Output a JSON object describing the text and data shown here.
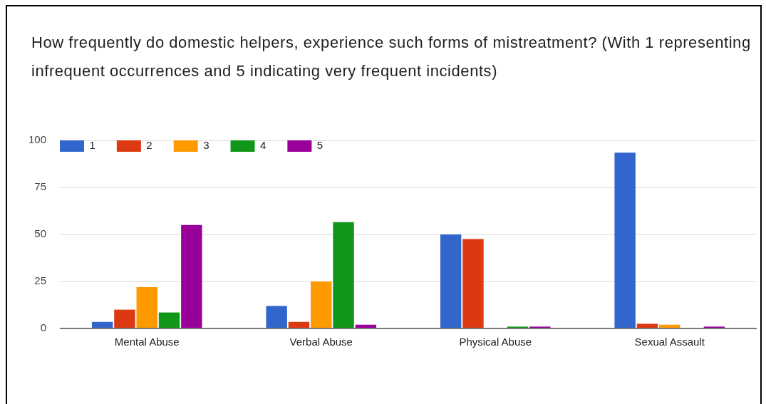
{
  "chart_data": {
    "type": "bar",
    "title": "How frequently do domestic helpers, experience such forms of mistreatment? (With 1 representing infrequent occurrences and 5 indicating very frequent incidents)",
    "categories": [
      "Mental Abuse",
      "Verbal Abuse",
      "Physical Abuse",
      "Sexual Assault"
    ],
    "series": [
      {
        "name": "1",
        "color": "#3366cc",
        "values": [
          3.5,
          12,
          50,
          93.5
        ]
      },
      {
        "name": "2",
        "color": "#dc3912",
        "values": [
          10,
          3.5,
          47.5,
          2.5
        ]
      },
      {
        "name": "3",
        "color": "#ff9900",
        "values": [
          22,
          25,
          0,
          2
        ]
      },
      {
        "name": "4",
        "color": "#109618",
        "values": [
          8.5,
          56.5,
          1,
          0
        ]
      },
      {
        "name": "5",
        "color": "#990099",
        "values": [
          55,
          2,
          1,
          1
        ]
      }
    ],
    "ylim": [
      0,
      100
    ],
    "yticks": [
      0,
      25,
      50,
      75,
      100
    ],
    "grid": "y",
    "legend": "top left"
  }
}
